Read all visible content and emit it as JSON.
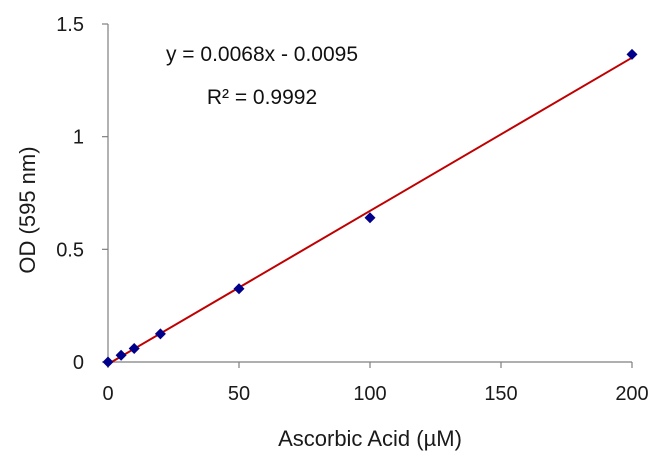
{
  "chart_data": {
    "type": "scatter",
    "xlabel": "Ascorbic Acid (µM)",
    "ylabel": "OD (595 nm)",
    "xlim": [
      0,
      200
    ],
    "ylim": [
      0,
      1.5
    ],
    "x_ticks": [
      0,
      50,
      100,
      150,
      200
    ],
    "y_ticks": [
      0,
      0.5,
      1,
      1.5
    ],
    "x_tick_labels": [
      "0",
      "50",
      "100",
      "150",
      "200"
    ],
    "y_tick_labels": [
      "0",
      "0.5",
      "1",
      "1.5"
    ],
    "grid": false,
    "series": [
      {
        "x": [
          0,
          5,
          10,
          20,
          50,
          100,
          200
        ],
        "y": [
          0.0,
          0.03,
          0.06,
          0.125,
          0.325,
          0.64,
          1.365
        ],
        "color": "#00008B"
      }
    ],
    "trendline": {
      "type": "linear",
      "slope": 0.0068,
      "intercept": -0.0095,
      "color": "#C00000"
    },
    "annotations": {
      "equation": "y = 0.0068x - 0.0095",
      "r_squared": "R² = 0.9992"
    }
  }
}
